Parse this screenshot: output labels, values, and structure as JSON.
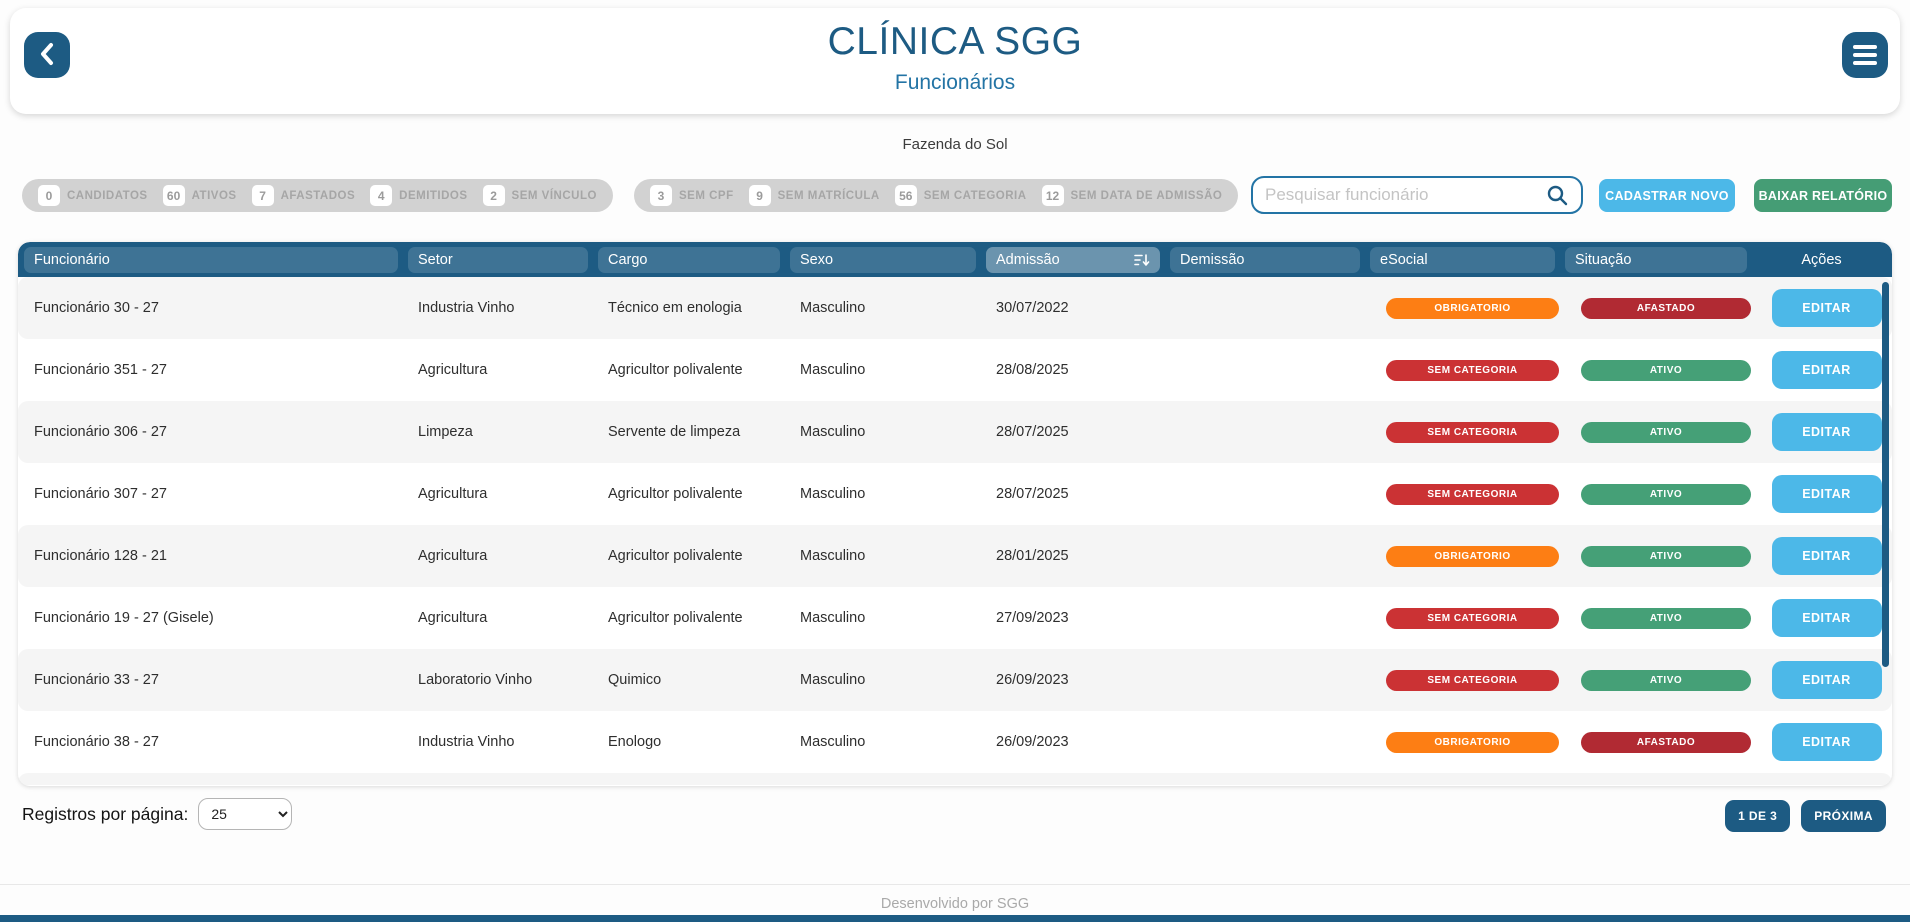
{
  "header": {
    "title": "CLÍNICA SGG",
    "subtitle": "Funcionários"
  },
  "icons": {
    "back": "chevron-left",
    "menu": "hamburger",
    "search": "magnifier",
    "sort": "sort-descending"
  },
  "company": "Fazenda do Sol",
  "stats": {
    "group1": [
      {
        "count": "0",
        "label": "CANDIDATOS"
      },
      {
        "count": "60",
        "label": "ATIVOS"
      },
      {
        "count": "7",
        "label": "AFASTADOS"
      },
      {
        "count": "4",
        "label": "DEMITIDOS"
      },
      {
        "count": "2",
        "label": "SEM VÍNCULO"
      }
    ],
    "group2": [
      {
        "count": "3",
        "label": "SEM CPF"
      },
      {
        "count": "9",
        "label": "SEM MATRÍCULA"
      },
      {
        "count": "56",
        "label": "SEM CATEGORIA"
      },
      {
        "count": "12",
        "label": "SEM DATA DE ADMISSÃO"
      }
    ]
  },
  "search": {
    "placeholder": "Pesquisar funcionário"
  },
  "actions": {
    "new_label": "CADASTRAR NOVO",
    "report_label": "BAIXAR RELATÓRIO"
  },
  "table": {
    "columns": [
      "Funcionário",
      "Setor",
      "Cargo",
      "Sexo",
      "Admissão",
      "Demissão",
      "eSocial",
      "Situação",
      "Ações"
    ],
    "sorted_column": "Admissão",
    "edit_label": "EDITAR",
    "rows": [
      {
        "funcionario": "Funcionário 30 - 27",
        "setor": "Industria Vinho",
        "cargo": "Técnico em enologia",
        "sexo": "Masculino",
        "admissao": "30/07/2022",
        "demissao": "",
        "esocial": "OBRIGATORIO",
        "situacao": "AFASTADO"
      },
      {
        "funcionario": "Funcionário 351 - 27",
        "setor": "Agricultura",
        "cargo": "Agricultor polivalente",
        "sexo": "Masculino",
        "admissao": "28/08/2025",
        "demissao": "",
        "esocial": "SEM CATEGORIA",
        "situacao": "ATIVO"
      },
      {
        "funcionario": "Funcionário 306 - 27",
        "setor": "Limpeza",
        "cargo": "Servente de limpeza",
        "sexo": "Masculino",
        "admissao": "28/07/2025",
        "demissao": "",
        "esocial": "SEM CATEGORIA",
        "situacao": "ATIVO"
      },
      {
        "funcionario": "Funcionário 307 - 27",
        "setor": "Agricultura",
        "cargo": "Agricultor polivalente",
        "sexo": "Masculino",
        "admissao": "28/07/2025",
        "demissao": "",
        "esocial": "SEM CATEGORIA",
        "situacao": "ATIVO"
      },
      {
        "funcionario": "Funcionário 128 - 21",
        "setor": "Agricultura",
        "cargo": "Agricultor polivalente",
        "sexo": "Masculino",
        "admissao": "28/01/2025",
        "demissao": "",
        "esocial": "OBRIGATORIO",
        "situacao": "ATIVO"
      },
      {
        "funcionario": "Funcionário 19 - 27 (Gisele)",
        "setor": "Agricultura",
        "cargo": "Agricultor polivalente",
        "sexo": "Masculino",
        "admissao": "27/09/2023",
        "demissao": "",
        "esocial": "SEM CATEGORIA",
        "situacao": "ATIVO"
      },
      {
        "funcionario": "Funcionário 33 - 27",
        "setor": "Laboratorio Vinho",
        "cargo": "Quimico",
        "sexo": "Masculino",
        "admissao": "26/09/2023",
        "demissao": "",
        "esocial": "SEM CATEGORIA",
        "situacao": "ATIVO"
      },
      {
        "funcionario": "Funcionário 38 - 27",
        "setor": "Industria Vinho",
        "cargo": "Enologo",
        "sexo": "Masculino",
        "admissao": "26/09/2023",
        "demissao": "",
        "esocial": "OBRIGATORIO",
        "situacao": "AFASTADO"
      }
    ]
  },
  "badge_colors": {
    "OBRIGATORIO": "#fd7e14",
    "SEM CATEGORIA": "#cb3234",
    "ATIVO": "#45a077",
    "AFASTADO": "#b12a33"
  },
  "pagination": {
    "per_page_label": "Registros por página:",
    "per_page_value": "25",
    "page_info": "1 DE 3",
    "next_label": "PRÓXIMA"
  },
  "footer": {
    "text": "Desenvolvido por SGG"
  },
  "colors": {
    "primary_dark_blue": "#1d5b83",
    "title_blue": "#2374a5",
    "light_blue": "#4cb8e8",
    "green": "#459d75",
    "orange": "#fd7e14",
    "red": "#cb3234",
    "dark_red": "#b12a33",
    "pill_gray": "#d2d2d2",
    "row_alt": "#f5f5f5"
  }
}
